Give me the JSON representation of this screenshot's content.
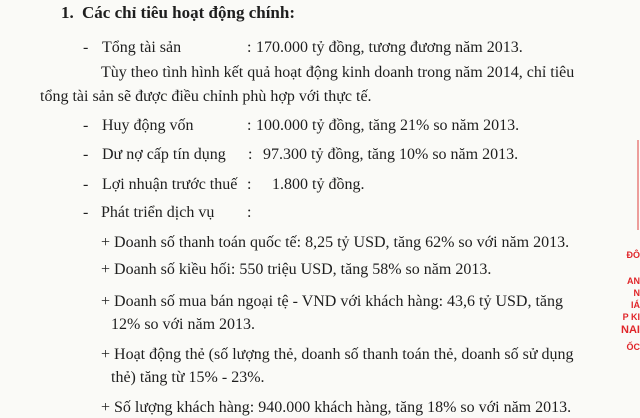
{
  "section": {
    "number": "1.",
    "title": "Các chỉ tiêu hoạt động chính:"
  },
  "items": [
    {
      "bullet": "-",
      "label": "Tổng tài sản",
      "sep": ":",
      "value": "170.000 tỷ đồng, tương đương năm 2013."
    },
    {
      "bullet": "-",
      "label": "Huy động vốn",
      "sep": ":",
      "value": "100.000 tỷ đồng, tăng 21% so năm 2013."
    },
    {
      "bullet": "-",
      "label": "Dư nợ cấp tín dụng",
      "sep": ":",
      "value": "97.300 tỷ đồng, tăng 10% so năm 2013."
    },
    {
      "bullet": "-",
      "label": "Lợi nhuận trước thuế",
      "sep": ":",
      "value": "1.800 tỷ đồng."
    },
    {
      "bullet": "-",
      "label": "Phát triển dịch vụ",
      "sep": ":",
      "value": ""
    }
  ],
  "note": {
    "line1": "Tùy theo tình hình kết quả hoạt động kinh doanh trong năm 2014, chỉ tiêu",
    "line2": "tổng tài sản sẽ được điều chỉnh phù hợp với thực tế."
  },
  "services": [
    {
      "line1": "+ Doanh số thanh toán quốc tế: 8,25 tỷ USD, tăng 62% so với năm 2013."
    },
    {
      "line1": "+ Doanh số kiều hối: 550 triệu USD, tăng 58% so năm 2013."
    },
    {
      "line1": "+ Doanh số mua bán ngoại tệ - VND với khách hàng: 43,6 tỷ USD, tăng",
      "line2": "12% so với năm 2013."
    },
    {
      "line1": "+ Hoạt động thẻ (số lượng thẻ, doanh số thanh toán thẻ, doanh số sử dụng",
      "line2": "thẻ) tăng từ 15% - 23%."
    },
    {
      "line1": "+ Số lượng khách hàng:  940.000 khách hàng, tăng 18% so với năm 2013."
    }
  ],
  "stamp": {
    "fragments": [
      "ĐÔ",
      "AN",
      "N",
      "IÁ",
      "P KI",
      "NAI",
      "ỐC"
    ],
    "color": "#e0262a"
  }
}
